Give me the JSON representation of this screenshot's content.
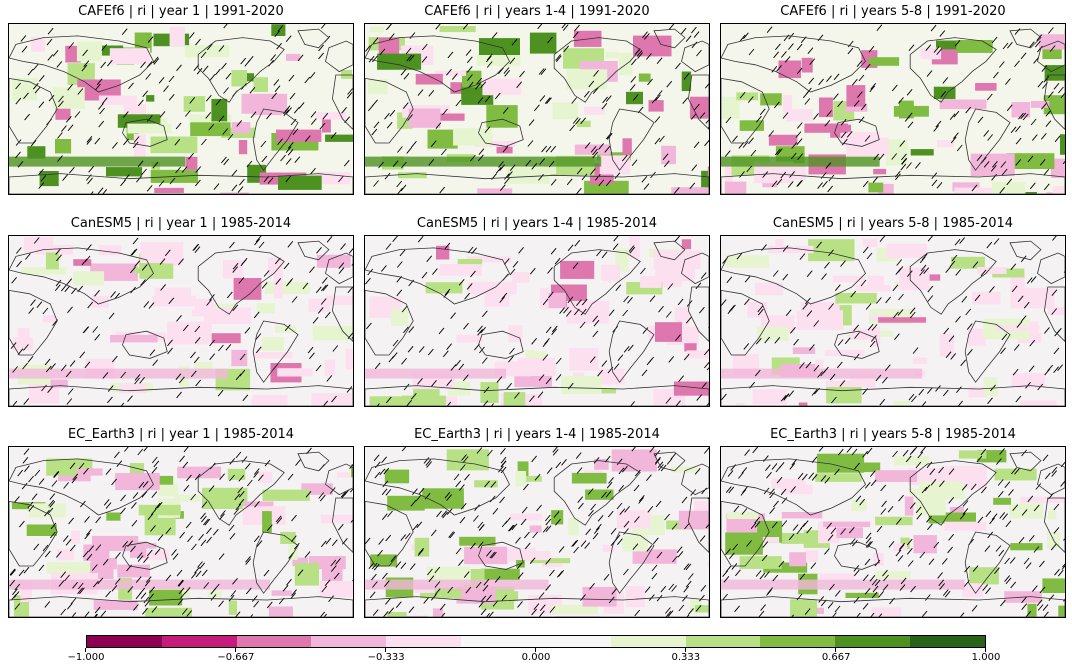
{
  "figure": {
    "panels": [
      {
        "title": "CAFEf6 | ri | year 1 | 1991-2020"
      },
      {
        "title": "CAFEf6 | ri | years 1-4 | 1991-2020"
      },
      {
        "title": "CAFEf6 | ri | years 5-8 | 1991-2020"
      },
      {
        "title": "CanESM5 | ri | year 1 | 1985-2014"
      },
      {
        "title": "CanESM5 | ri | years 1-4 | 1985-2014"
      },
      {
        "title": "CanESM5 | ri | years 5-8 | 1985-2014"
      },
      {
        "title": "EC_Earth3 | ri | year 1 | 1985-2014"
      },
      {
        "title": "EC_Earth3 | ri | years 1-4 | 1985-2014"
      },
      {
        "title": "EC_Earth3 | ri | years 5-8 | 1985-2014"
      }
    ],
    "colorbar": {
      "colors": [
        "#8e0152",
        "#c51b7d",
        "#de77ae",
        "#f1b6da",
        "#fde0ef",
        "#f7f7f7",
        "#f7f7f7",
        "#e6f5d0",
        "#b8e186",
        "#7fbc41",
        "#4d9221",
        "#276419"
      ],
      "tick_labels": [
        "−1.000",
        "−0.667",
        "−0.333",
        "0.000",
        "0.333",
        "0.667",
        "1.000"
      ],
      "tick_values": [
        -1.0,
        -0.667,
        -0.333,
        0.0,
        0.333,
        0.667,
        1.0
      ],
      "range": [
        -1.0,
        1.0
      ]
    },
    "hatching_color": "#000000",
    "coastline_color": "#333333"
  }
}
